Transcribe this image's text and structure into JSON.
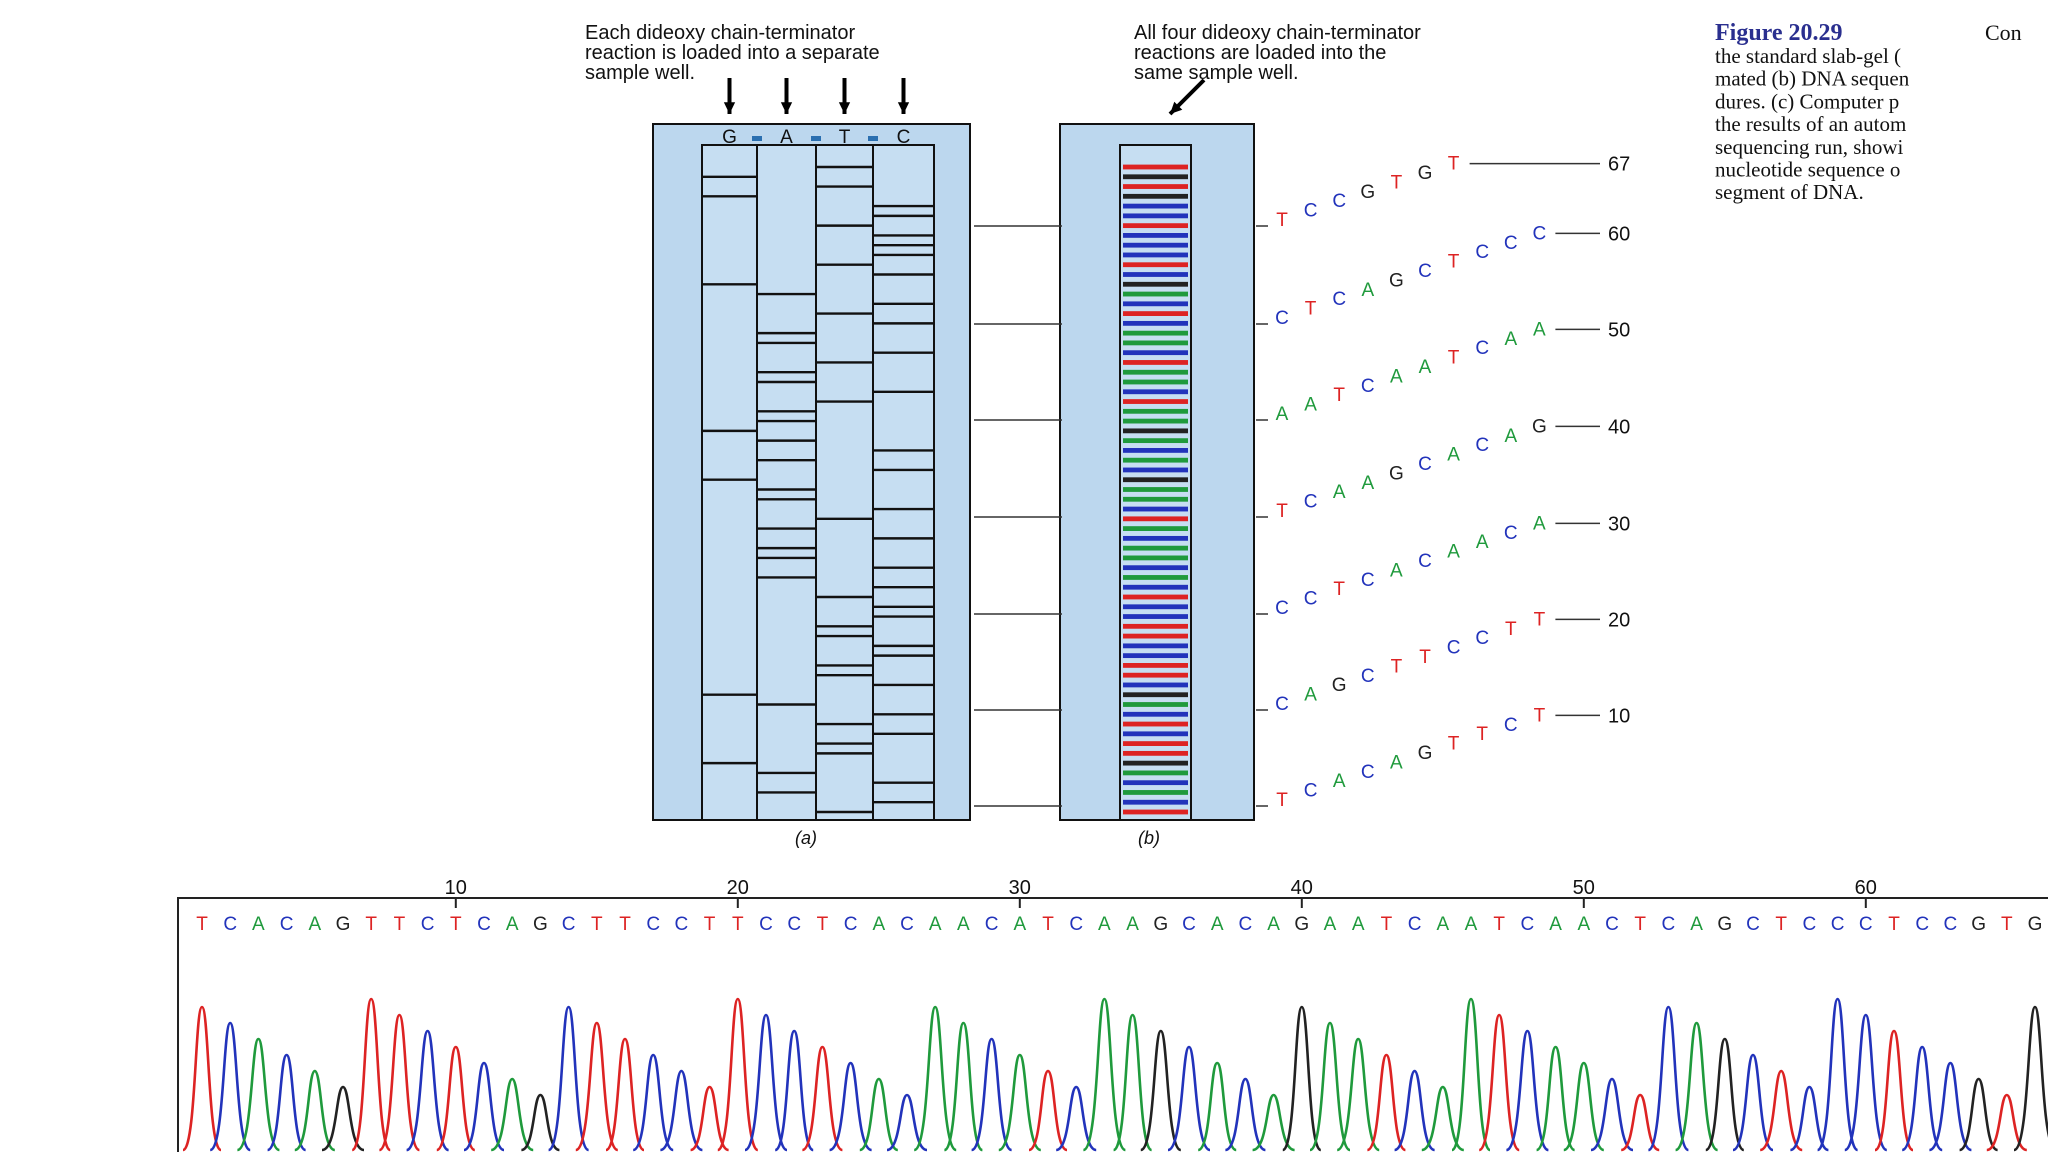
{
  "panel_a": {
    "annotation": [
      "Each dideoxy chain-terminator",
      "reaction is loaded into a separate",
      "sample well."
    ],
    "lanes": [
      "G",
      "A",
      "T",
      "C"
    ],
    "label": "(a)"
  },
  "panel_b": {
    "annotation": [
      "All four dideoxy chain-terminator",
      "reactions are loaded into the",
      "same sample well."
    ],
    "label": "(b)",
    "rows": [
      {
        "letters": "TCACAGTTCT",
        "label": "10"
      },
      {
        "letters": "CAGCTTCCTT",
        "label": "20"
      },
      {
        "letters": "CCTCACAACA",
        "label": "30"
      },
      {
        "letters": "TCAAGCACAG",
        "label": "40"
      },
      {
        "letters": "AATCAATCAA",
        "label": "50"
      },
      {
        "letters": "CTCAGCTCCC",
        "label": "60"
      },
      {
        "letters": "TCCGTGT",
        "label": "67"
      }
    ]
  },
  "base_colors": {
    "A": "#1f9a3c",
    "C": "#2233bb",
    "G": "#222222",
    "T": "#dd2323"
  },
  "caption": {
    "figure": "Figure 20.29",
    "first_line": "Con",
    "lines": [
      "the standard slab-gel (",
      "mated (b) DNA sequen",
      "dures. (c) Computer p",
      "the results of an autom",
      "sequencing run, showi",
      "nucleotide sequence o",
      "segment of DNA."
    ]
  },
  "chromatogram": {
    "sequence": "TCACAGTTCTCAGCTTCCTTCCTCACAACATCAAGCACAGAATCAATCAACTCAGCTCCCTCCGTG",
    "ticks": [
      10,
      20,
      30,
      40,
      50,
      60
    ]
  }
}
